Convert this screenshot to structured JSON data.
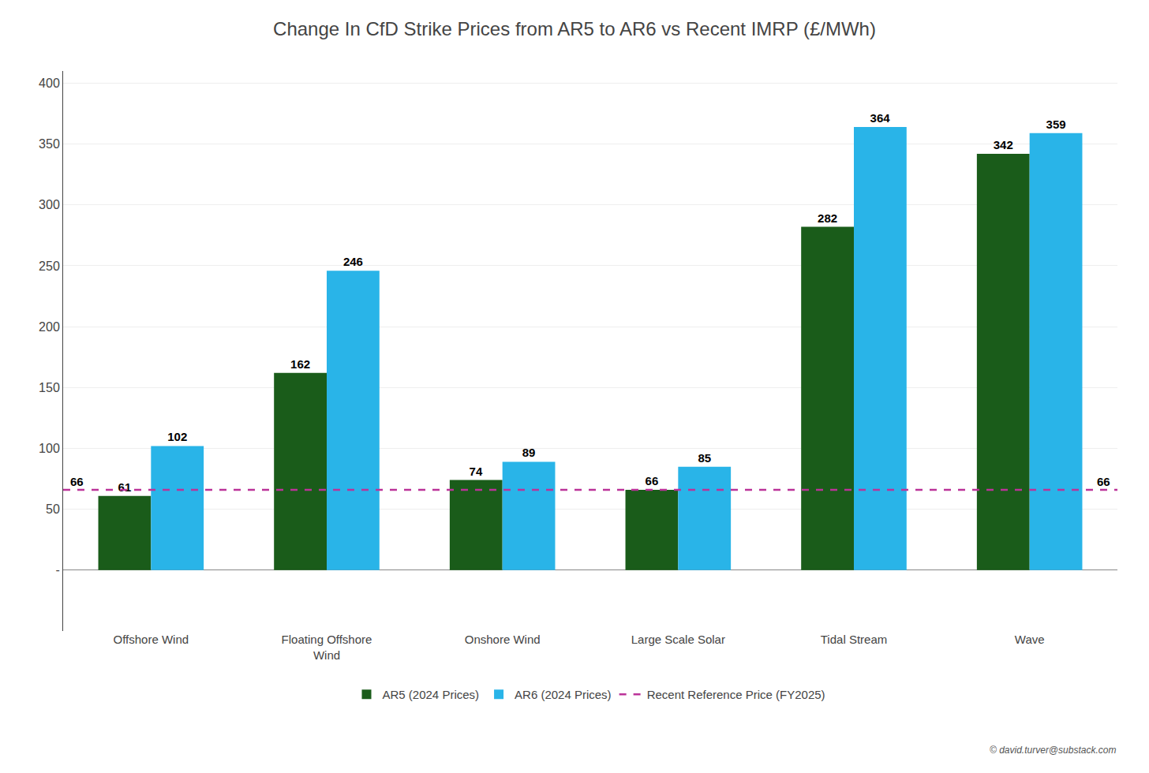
{
  "chart_data": {
    "type": "bar",
    "title": "Change In CfD Strike Prices from AR5 to AR6 vs Recent IMRP (£/MWh)",
    "categories": [
      "Offshore Wind",
      "Floating Offshore\nWind",
      "Onshore Wind",
      "Large Scale Solar",
      "Tidal Stream",
      "Wave"
    ],
    "series": [
      {
        "name": "AR5 (2024 Prices)",
        "color": "#1a5c1a",
        "values": [
          61,
          162,
          74,
          66,
          282,
          342
        ]
      },
      {
        "name": "AR6 (2024 Prices)",
        "color": "#29b4e8",
        "values": [
          102,
          246,
          89,
          85,
          364,
          359
        ]
      }
    ],
    "reference_line": {
      "name": "Recent Reference Price (FY2025)",
      "value": 66,
      "color": "#bb3399",
      "line_style": "dashed",
      "value_labels": [
        "66",
        "66"
      ]
    },
    "ylim": [
      -50,
      410
    ],
    "yticks": [
      {
        "value": 0,
        "label": "-"
      },
      50,
      100,
      150,
      200,
      250,
      300,
      350,
      400
    ],
    "grid": true,
    "legend": "bottom",
    "data_labels": true,
    "annotations": [
      "© david.turver@substack.com"
    ]
  }
}
